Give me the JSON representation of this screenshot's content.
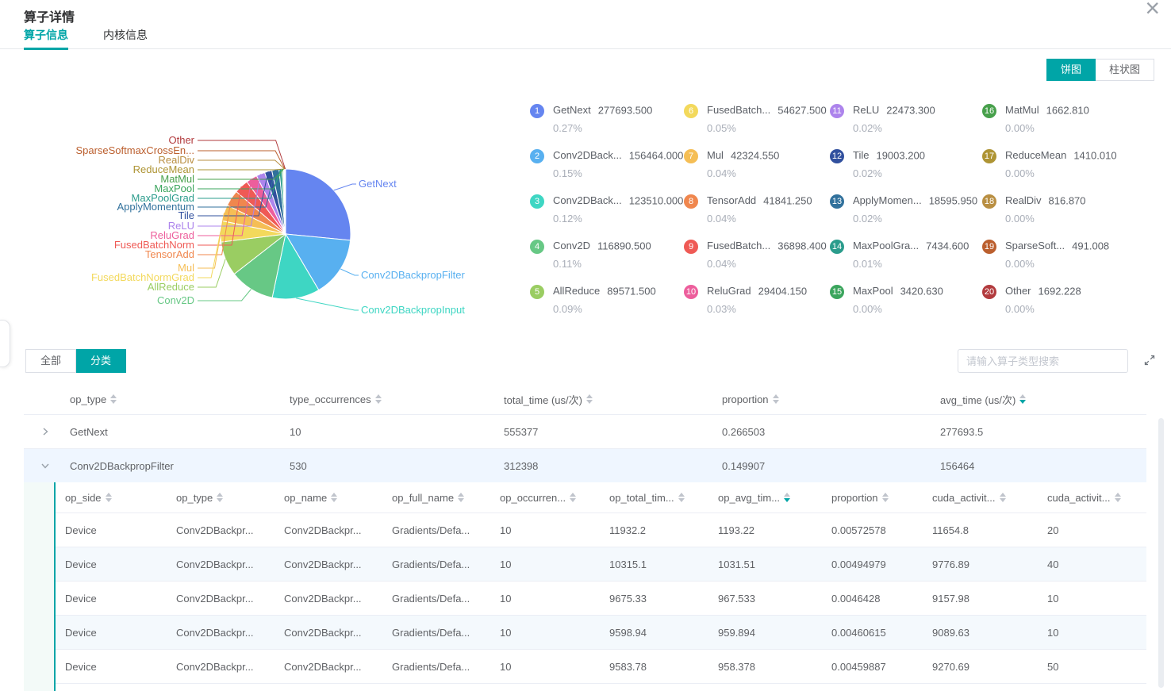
{
  "colors": {
    "accent": "#00A5A7",
    "expanded_row_bg": "#EFF6FF",
    "nested_shade_bg": "#F4F9FD"
  },
  "dialog": {
    "title": "算子详情",
    "close_glyph": "×"
  },
  "tabs": [
    {
      "label": "算子信息",
      "active": true
    },
    {
      "label": "内核信息",
      "active": false
    }
  ],
  "chart_toggle": {
    "pie_label": "饼图",
    "bar_label": "柱状图",
    "active": "饼图"
  },
  "chart_data": {
    "type": "pie",
    "title": "",
    "legend_position": "right-grid-4col",
    "series": [
      {
        "name": "GetNext",
        "value": 277693.5,
        "value_label": "277693.500",
        "percent_label": "0.27%",
        "legend_label": "GetNext",
        "callout_label": "GetNext",
        "color": "#6585F0"
      },
      {
        "name": "Conv2DBackpropFilter",
        "value": 156464.0,
        "value_label": "156464.000",
        "percent_label": "0.15%",
        "legend_label": "Conv2DBack...",
        "callout_label": "Conv2DBackpropFilter",
        "color": "#58B0F0"
      },
      {
        "name": "Conv2DBackpropInput",
        "value": 123510.0,
        "value_label": "123510.000",
        "percent_label": "0.12%",
        "legend_label": "Conv2DBack...",
        "callout_label": "Conv2DBackpropInput",
        "color": "#3ED6C3"
      },
      {
        "name": "Conv2D",
        "value": 116890.5,
        "value_label": "116890.500",
        "percent_label": "0.11%",
        "legend_label": "Conv2D",
        "callout_label": "Conv2D",
        "color": "#67C885"
      },
      {
        "name": "AllReduce",
        "value": 89571.5,
        "value_label": "89571.500",
        "percent_label": "0.09%",
        "legend_label": "AllReduce",
        "callout_label": "AllReduce",
        "color": "#9ACD62"
      },
      {
        "name": "FusedBatchNormGrad",
        "value": 54627.5,
        "value_label": "54627.500",
        "percent_label": "0.05%",
        "legend_label": "FusedBatch...",
        "callout_label": "FusedBatchNormGrad",
        "color": "#F3D95C"
      },
      {
        "name": "Mul",
        "value": 42324.55,
        "value_label": "42324.550",
        "percent_label": "0.04%",
        "legend_label": "Mul",
        "callout_label": "Mul",
        "color": "#F5BE55"
      },
      {
        "name": "TensorAdd",
        "value": 41841.25,
        "value_label": "41841.250",
        "percent_label": "0.04%",
        "legend_label": "TensorAdd",
        "callout_label": "TensorAdd",
        "color": "#F0874E"
      },
      {
        "name": "FusedBatchNorm",
        "value": 36898.4,
        "value_label": "36898.400",
        "percent_label": "0.04%",
        "legend_label": "FusedBatch...",
        "callout_label": "FusedBatchNorm",
        "color": "#EF5A55"
      },
      {
        "name": "ReluGrad",
        "value": 29404.15,
        "value_label": "29404.150",
        "percent_label": "0.03%",
        "legend_label": "ReluGrad",
        "callout_label": "ReluGrad",
        "color": "#ED5E9C"
      },
      {
        "name": "ReLU",
        "value": 22473.3,
        "value_label": "22473.300",
        "percent_label": "0.02%",
        "legend_label": "ReLU",
        "callout_label": "ReLU",
        "color": "#AD84EC"
      },
      {
        "name": "Tile",
        "value": 19003.2,
        "value_label": "19003.200",
        "percent_label": "0.02%",
        "legend_label": "Tile",
        "callout_label": "Tile",
        "color": "#31509E"
      },
      {
        "name": "ApplyMomentum",
        "value": 18595.95,
        "value_label": "18595.950",
        "percent_label": "0.02%",
        "legend_label": "ApplyMomen...",
        "callout_label": "ApplyMomentum",
        "color": "#31719C"
      },
      {
        "name": "MaxPoolGrad",
        "value": 7434.6,
        "value_label": "7434.600",
        "percent_label": "0.01%",
        "legend_label": "MaxPoolGra...",
        "callout_label": "MaxPoolGrad",
        "color": "#2B9C8C"
      },
      {
        "name": "MaxPool",
        "value": 3420.63,
        "value_label": "3420.630",
        "percent_label": "0.00%",
        "legend_label": "MaxPool",
        "callout_label": "MaxPool",
        "color": "#3BA55D"
      },
      {
        "name": "MatMul",
        "value": 1662.81,
        "value_label": "1662.810",
        "percent_label": "0.00%",
        "legend_label": "MatMul",
        "callout_label": "MatMul",
        "color": "#47A04B"
      },
      {
        "name": "ReduceMean",
        "value": 1410.01,
        "value_label": "1410.010",
        "percent_label": "0.00%",
        "legend_label": "ReduceMean",
        "callout_label": "ReduceMean",
        "color": "#AE9434"
      },
      {
        "name": "RealDiv",
        "value": 816.87,
        "value_label": "816.870",
        "percent_label": "0.00%",
        "legend_label": "RealDiv",
        "callout_label": "RealDiv",
        "color": "#B98F42"
      },
      {
        "name": "SparseSoftmaxCrossEn...",
        "value": 491.008,
        "value_label": "491.008",
        "percent_label": "0.00%",
        "legend_label": "SparseSoft...",
        "callout_label": "SparseSoftmaxCrossEn...",
        "color": "#BB5F2E"
      },
      {
        "name": "Other",
        "value": 1692.228,
        "value_label": "1692.228",
        "percent_label": "0.00%",
        "legend_label": "Other",
        "callout_label": "Other",
        "color": "#B23B3E"
      }
    ]
  },
  "filter_buttons": [
    {
      "label": "全部",
      "active": false
    },
    {
      "label": "分类",
      "active": true
    }
  ],
  "search": {
    "placeholder": "请输入算子类型搜索"
  },
  "table": {
    "columns": [
      {
        "label": "op_type",
        "sort": "none"
      },
      {
        "label": "type_occurrences",
        "sort": "none"
      },
      {
        "label": "total_time (us/次)",
        "sort": "none"
      },
      {
        "label": "proportion",
        "sort": "none"
      },
      {
        "label": "avg_time (us/次)",
        "sort": "desc"
      }
    ],
    "rows": [
      {
        "expanded": false,
        "cells": [
          "GetNext",
          "10",
          "555377",
          "0.266503",
          "277693.5"
        ]
      },
      {
        "expanded": true,
        "cells": [
          "Conv2DBackpropFilter",
          "530",
          "312398",
          "0.149907",
          "156464"
        ]
      }
    ],
    "nested": {
      "columns": [
        {
          "label": "op_side",
          "sort": "none"
        },
        {
          "label": "op_type",
          "sort": "none"
        },
        {
          "label": "op_name",
          "sort": "none"
        },
        {
          "label": "op_full_name",
          "sort": "none"
        },
        {
          "label": "op_occurren...",
          "sort": "none"
        },
        {
          "label": "op_total_tim...",
          "sort": "none"
        },
        {
          "label": "op_avg_tim...",
          "sort": "desc"
        },
        {
          "label": "proportion",
          "sort": "none"
        },
        {
          "label": "cuda_activit...",
          "sort": "none"
        },
        {
          "label": "cuda_activit...",
          "sort": "none"
        }
      ],
      "rows": [
        [
          "Device",
          "Conv2DBackpr...",
          "Conv2DBackpr...",
          "Gradients/Defa...",
          "10",
          "11932.2",
          "1193.22",
          "0.00572578",
          "11654.8",
          "20"
        ],
        [
          "Device",
          "Conv2DBackpr...",
          "Conv2DBackpr...",
          "Gradients/Defa...",
          "10",
          "10315.1",
          "1031.51",
          "0.00494979",
          "9776.89",
          "40"
        ],
        [
          "Device",
          "Conv2DBackpr...",
          "Conv2DBackpr...",
          "Gradients/Defa...",
          "10",
          "9675.33",
          "967.533",
          "0.0046428",
          "9157.98",
          "10"
        ],
        [
          "Device",
          "Conv2DBackpr...",
          "Conv2DBackpr...",
          "Gradients/Defa...",
          "10",
          "9598.94",
          "959.894",
          "0.00460615",
          "9089.63",
          "10"
        ],
        [
          "Device",
          "Conv2DBackpr...",
          "Conv2DBackpr...",
          "Gradients/Defa...",
          "10",
          "9583.78",
          "958.378",
          "0.00459887",
          "9270.69",
          "50"
        ]
      ]
    }
  }
}
